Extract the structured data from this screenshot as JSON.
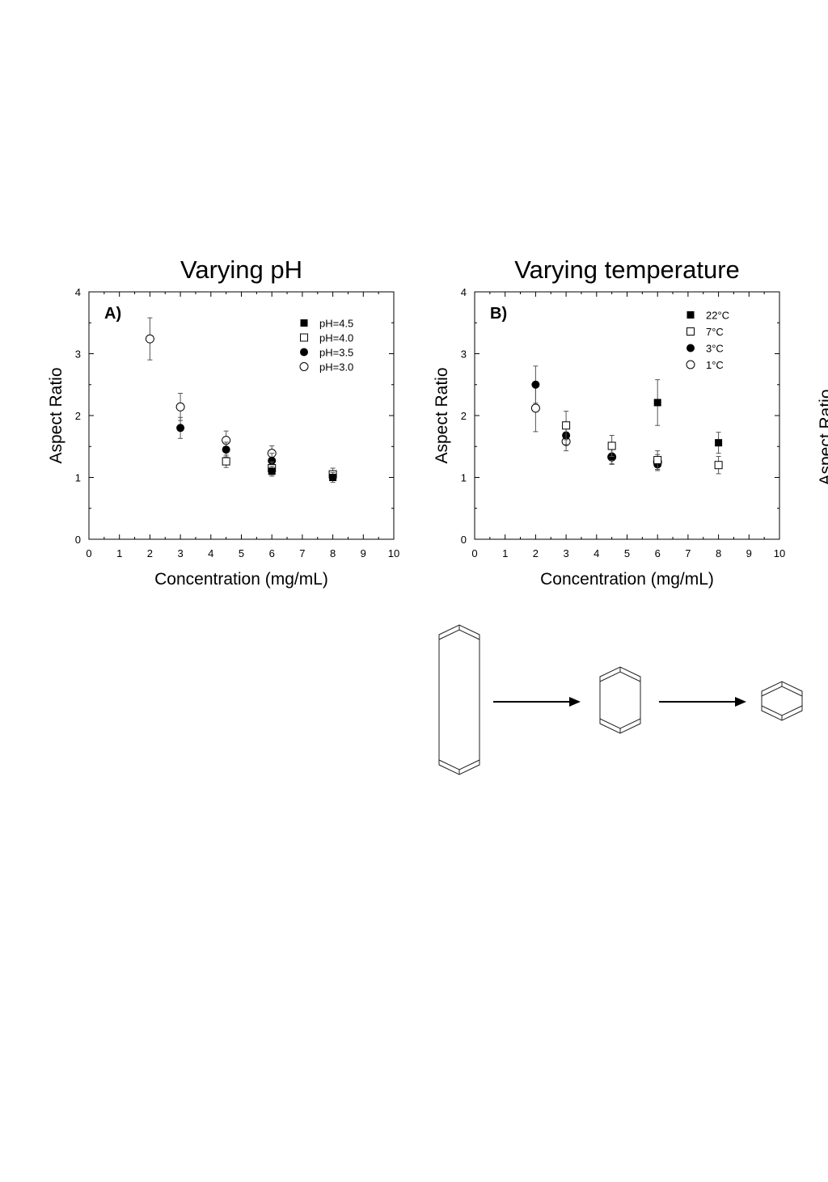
{
  "chart_data": [
    {
      "type": "scatter",
      "title": "Varying pH",
      "panel_label": "A)",
      "xlabel": "Concentration (mg/mL)",
      "ylabel": "Aspect Ratio",
      "xlim": [
        0,
        10
      ],
      "ylim": [
        0,
        4
      ],
      "xticks": [
        "0",
        "1",
        "2",
        "3",
        "4",
        "5",
        "6",
        "7",
        "8",
        "9",
        "10"
      ],
      "yticks": [
        "0",
        "1",
        "2",
        "3",
        "4"
      ],
      "legend_position": "top-right",
      "grid": false,
      "series": [
        {
          "name": "pH=4.5",
          "marker": "filled-square",
          "points": [
            {
              "x": 6,
              "y": 1.1,
              "err": 0.08
            },
            {
              "x": 8,
              "y": 1.0,
              "err": 0.08
            }
          ]
        },
        {
          "name": "pH=4.0",
          "marker": "open-square",
          "points": [
            {
              "x": 4.5,
              "y": 1.26,
              "err": 0.1
            },
            {
              "x": 6,
              "y": 1.15,
              "err": 0.1
            },
            {
              "x": 8,
              "y": 1.05,
              "err": 0.1
            }
          ]
        },
        {
          "name": "pH=3.5",
          "marker": "filled-circle",
          "points": [
            {
              "x": 3,
              "y": 1.8,
              "err": 0.17
            },
            {
              "x": 4.5,
              "y": 1.45,
              "err": 0.12
            },
            {
              "x": 6,
              "y": 1.27,
              "err": 0.12
            }
          ]
        },
        {
          "name": "pH=3.0",
          "marker": "open-circle",
          "points": [
            {
              "x": 2,
              "y": 3.24,
              "err": 0.34
            },
            {
              "x": 3,
              "y": 2.14,
              "err": 0.22
            },
            {
              "x": 4.5,
              "y": 1.6,
              "err": 0.15
            },
            {
              "x": 6,
              "y": 1.39,
              "err": 0.12
            }
          ]
        }
      ]
    },
    {
      "type": "scatter",
      "title": "Varying temperature",
      "panel_label": "B)",
      "xlabel": "Concentration (mg/mL)",
      "ylabel": "Aspect Ratio",
      "xlim": [
        0,
        10
      ],
      "ylim": [
        0,
        4
      ],
      "xticks": [
        "0",
        "1",
        "2",
        "3",
        "4",
        "5",
        "6",
        "7",
        "8",
        "9",
        "10"
      ],
      "yticks": [
        "0",
        "1",
        "2",
        "3",
        "4"
      ],
      "legend_position": "top-right",
      "grid": false,
      "series": [
        {
          "name": "22°C",
          "marker": "filled-square",
          "points": [
            {
              "x": 6,
              "y": 2.21,
              "err": 0.37
            },
            {
              "x": 8,
              "y": 1.56,
              "err": 0.17
            }
          ]
        },
        {
          "name": "7°C",
          "marker": "open-square",
          "points": [
            {
              "x": 3,
              "y": 1.84,
              "err": 0.23
            },
            {
              "x": 4.5,
              "y": 1.51,
              "err": 0.17
            },
            {
              "x": 6,
              "y": 1.28,
              "err": 0.15
            },
            {
              "x": 8,
              "y": 1.2,
              "err": 0.14
            }
          ]
        },
        {
          "name": "3°C",
          "marker": "filled-circle",
          "points": [
            {
              "x": 2,
              "y": 2.5,
              "err": 0.3
            },
            {
              "x": 3,
              "y": 1.68,
              "err": 0.15
            },
            {
              "x": 4.5,
              "y": 1.34,
              "err": 0.12
            },
            {
              "x": 6,
              "y": 1.21,
              "err": 0.1
            }
          ]
        },
        {
          "name": "1°C",
          "marker": "open-circle",
          "points": [
            {
              "x": 2,
              "y": 2.12,
              "err": 0.38
            },
            {
              "x": 3,
              "y": 1.58,
              "err": 0.15
            },
            {
              "x": 4.5,
              "y": 1.33,
              "err": 0.12
            },
            {
              "x": 6,
              "y": 1.25,
              "err": 0.12
            }
          ]
        }
      ]
    }
  ],
  "partial_axis_label": "Aspect Ratio",
  "diagram": {
    "shapes": [
      "elongated-hexagonal-prism",
      "medium-hexagonal-prism",
      "flat-hexagonal-prism"
    ],
    "arrows": 2
  }
}
